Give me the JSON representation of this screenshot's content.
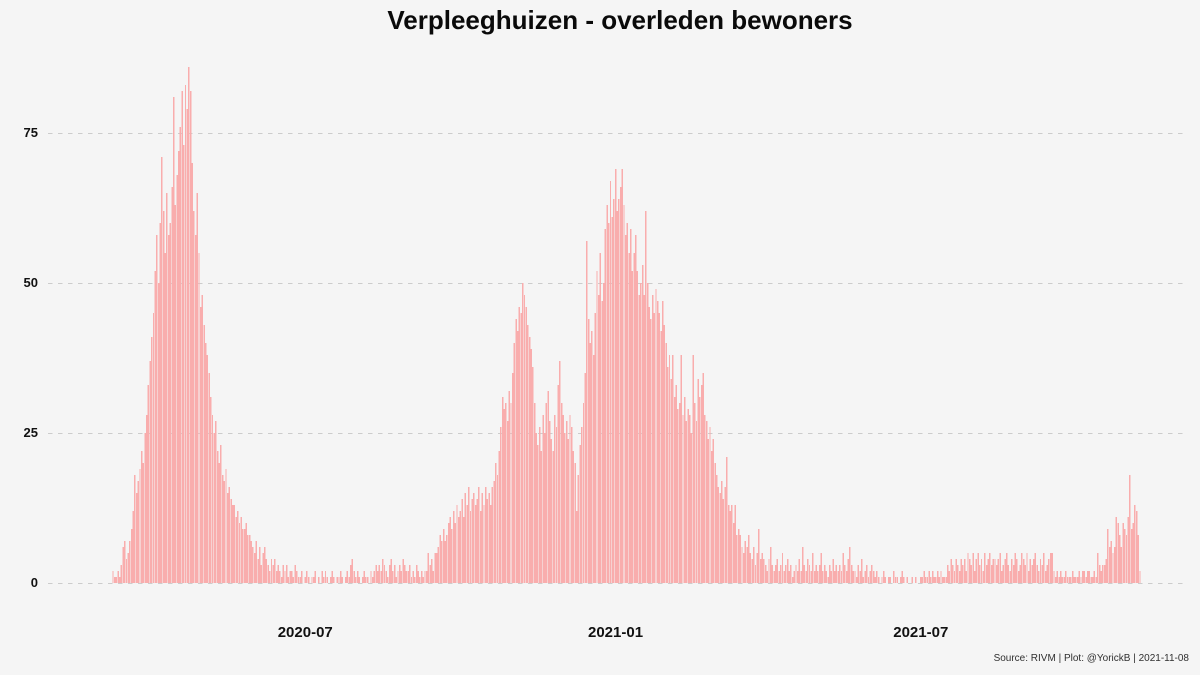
{
  "page": {
    "background": "#f5f5f5"
  },
  "chart_data": {
    "type": "bar",
    "title": "Verpleeghuizen - overleden bewoners",
    "caption": "Source: RIVM | Plot: @YorickB |  2021-11-08",
    "xlabel": "",
    "ylabel": "",
    "ylim": [
      0,
      87
    ],
    "grid": "horizontal-dashed",
    "legend": "none",
    "bar_color": "#f9adad",
    "grid_color": "#cccccc",
    "text_color": "#111111",
    "background_color": "#f5f5f5",
    "x_unit": "day",
    "n_points": 610,
    "y_ticks": [
      {
        "value": 0,
        "label": "0"
      },
      {
        "value": 25,
        "label": "25"
      },
      {
        "value": 50,
        "label": "50"
      },
      {
        "value": 75,
        "label": "75"
      }
    ],
    "x_ticks": [
      {
        "index": 114,
        "label": "2020-07"
      },
      {
        "index": 298,
        "label": "2021-01"
      },
      {
        "index": 479,
        "label": "2021-07"
      }
    ],
    "values": [
      2,
      1,
      1,
      2,
      1,
      3,
      6,
      7,
      4,
      5,
      7,
      9,
      12,
      18,
      15,
      17,
      19,
      22,
      20,
      25,
      28,
      33,
      37,
      41,
      45,
      52,
      58,
      50,
      60,
      71,
      62,
      55,
      65,
      58,
      60,
      66,
      81,
      63,
      68,
      72,
      76,
      82,
      73,
      83,
      79,
      86,
      82,
      70,
      62,
      58,
      65,
      55,
      46,
      48,
      43,
      40,
      38,
      35,
      31,
      28,
      25,
      27,
      22,
      20,
      23,
      18,
      17,
      19,
      15,
      16,
      14,
      13,
      13,
      11,
      12,
      10,
      11,
      9,
      9,
      10,
      8,
      8,
      7,
      6,
      5,
      7,
      4,
      6,
      3,
      5,
      6,
      4,
      3,
      2,
      4,
      3,
      4,
      2,
      3,
      2,
      1,
      3,
      2,
      3,
      1,
      2,
      2,
      1,
      3,
      2,
      1,
      1,
      2,
      0,
      1,
      2,
      1,
      0,
      1,
      1,
      2,
      0,
      1,
      0,
      2,
      1,
      2,
      1,
      0,
      1,
      2,
      1,
      0,
      1,
      1,
      2,
      1,
      0,
      1,
      2,
      1,
      3,
      4,
      2,
      1,
      2,
      1,
      0,
      1,
      2,
      1,
      1,
      0,
      2,
      1,
      2,
      3,
      2,
      3,
      2,
      4,
      3,
      2,
      1,
      3,
      4,
      2,
      3,
      1,
      2,
      3,
      2,
      4,
      3,
      2,
      2,
      3,
      1,
      2,
      1,
      3,
      2,
      1,
      2,
      1,
      2,
      2,
      5,
      3,
      4,
      2,
      5,
      5,
      6,
      8,
      7,
      9,
      7,
      8,
      10,
      11,
      9,
      12,
      10,
      13,
      11,
      12,
      14,
      11,
      15,
      13,
      16,
      12,
      14,
      15,
      13,
      14,
      16,
      12,
      15,
      13,
      16,
      14,
      15,
      13,
      16,
      17,
      20,
      18,
      22,
      26,
      31,
      29,
      30,
      27,
      32,
      30,
      35,
      40,
      44,
      42,
      46,
      45,
      50,
      48,
      46,
      43,
      41,
      39,
      36,
      30,
      25,
      23,
      26,
      22,
      28,
      25,
      30,
      32,
      27,
      24,
      22,
      28,
      26,
      33,
      37,
      30,
      28,
      25,
      27,
      24,
      28,
      26,
      22,
      20,
      12,
      18,
      23,
      26,
      30,
      35,
      57,
      44,
      40,
      42,
      38,
      45,
      52,
      48,
      55,
      47,
      50,
      59,
      63,
      60,
      67,
      61,
      64,
      69,
      62,
      64,
      66,
      69,
      63,
      58,
      60,
      55,
      59,
      52,
      55,
      58,
      52,
      48,
      50,
      53,
      48,
      62,
      50,
      46,
      44,
      48,
      45,
      49,
      47,
      45,
      42,
      47,
      43,
      40,
      36,
      38,
      34,
      38,
      31,
      33,
      29,
      30,
      38,
      28,
      31,
      27,
      29,
      28,
      25,
      38,
      30,
      27,
      34,
      31,
      33,
      35,
      28,
      27,
      24,
      26,
      22,
      24,
      20,
      18,
      16,
      15,
      17,
      14,
      16,
      21,
      13,
      12,
      13,
      10,
      13,
      8,
      9,
      8,
      6,
      5,
      7,
      6,
      8,
      5,
      4,
      6,
      3,
      5,
      9,
      4,
      5,
      4,
      3,
      2,
      4,
      6,
      3,
      2,
      3,
      4,
      2,
      3,
      5,
      2,
      3,
      4,
      2,
      3,
      1,
      2,
      3,
      2,
      4,
      2,
      6,
      3,
      2,
      4,
      3,
      2,
      5,
      2,
      3,
      2,
      3,
      5,
      2,
      3,
      2,
      1,
      3,
      2,
      4,
      2,
      3,
      2,
      3,
      2,
      5,
      3,
      2,
      4,
      6,
      3,
      2,
      2,
      1,
      3,
      2,
      4,
      1,
      2,
      3,
      1,
      2,
      3,
      2,
      1,
      2,
      1,
      0,
      1,
      2,
      1,
      0,
      1,
      1,
      0,
      2,
      1,
      1,
      0,
      1,
      2,
      1,
      0,
      1,
      0,
      0,
      1,
      0,
      1,
      0,
      0,
      1,
      1,
      2,
      1,
      1,
      2,
      1,
      2,
      1,
      1,
      2,
      1,
      2,
      1,
      1,
      1,
      3,
      2,
      4,
      3,
      2,
      4,
      3,
      2,
      4,
      3,
      4,
      2,
      5,
      4,
      3,
      5,
      2,
      4,
      5,
      3,
      4,
      2,
      5,
      3,
      4,
      5,
      3,
      4,
      4,
      3,
      4,
      5,
      2,
      3,
      4,
      5,
      3,
      2,
      4,
      3,
      5,
      4,
      2,
      3,
      5,
      4,
      3,
      5,
      2,
      4,
      3,
      4,
      5,
      3,
      2,
      4,
      3,
      5,
      2,
      3,
      4,
      5,
      5,
      2,
      1,
      2,
      1,
      2,
      1,
      1,
      2,
      1,
      1,
      1,
      2,
      1,
      1,
      1,
      2,
      1,
      2,
      2,
      1,
      2,
      2,
      1,
      1,
      2,
      1,
      5,
      3,
      2,
      3,
      3,
      4,
      9,
      6,
      7,
      5,
      6,
      11,
      10,
      8,
      6,
      10,
      9,
      8,
      11,
      18,
      9,
      10,
      13,
      12,
      8,
      2
    ]
  }
}
